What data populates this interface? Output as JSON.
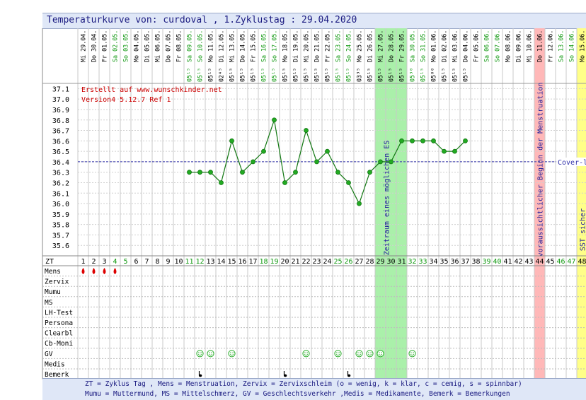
{
  "header": {
    "title": "Temperaturkurve von: curdoval , 1.Zyklustag : 29.04.2020"
  },
  "notes": {
    "created": "Erstellt auf www.wunschkinder.net",
    "version": "Version4 5.12.7 Ref 1",
    "coverline": "Cover-l",
    "fertile_window": "Zeitraum eines möglichen ES",
    "menstruation": "voraussichtlicher Beginn der Menstruation",
    "sst": "SST sicher"
  },
  "legend": {
    "line1": "ZT = Zyklus Tag , Mens = Menstruation, Zervix = Zervixschleim (o = wenig, k = klar, c = cemig, s = spinnbar)",
    "line2": "Mumu = Muttermund, MS = Mittelschmerz, GV = Geschlechtsverkehr ,Medis = Medikamente, Bemerk = Bemerkungen"
  },
  "colors": {
    "line": "#117711",
    "point": "#22aa22",
    "coverline": "#3333aa",
    "fertile": "#aaf0aa",
    "menstruation": "#ffb8b8",
    "sst": "#ffff88",
    "weekend": "#119911",
    "text": "#000000",
    "red_text": "#cc0000"
  },
  "chart_data": {
    "type": "line",
    "title": "Temperaturkurve",
    "ylim": [
      35.5,
      37.15
    ],
    "yticks": [
      37.1,
      37.0,
      36.9,
      36.8,
      36.7,
      36.6,
      36.5,
      36.4,
      36.3,
      36.2,
      36.1,
      36.0,
      35.9,
      35.8,
      35.7,
      35.6
    ],
    "coverline": 36.4,
    "dates": [
      "Mi 29.04.",
      "Do 30.04.",
      "Fr 01.05.",
      "Sa 02.05.",
      "So 03.05.",
      "Mo 04.05.",
      "Di 05.05.",
      "Mi 06.05.",
      "Do 07.05.",
      "Fr 08.05.",
      "Sa 09.05.",
      "So 10.05.",
      "Mo 11.05.",
      "Di 12.05.",
      "Mi 13.05.",
      "Do 14.05.",
      "Fr 15.05.",
      "Sa 16.05.",
      "So 17.05.",
      "Mo 18.05.",
      "Di 19.05.",
      "Mi 20.05.",
      "Do 21.05.",
      "Fr 22.05.",
      "Sa 23.05.",
      "So 24.05.",
      "Mo 25.05.",
      "Di 26.05.",
      "Mi 27.05.",
      "Do 28.05.",
      "Fr 29.05.",
      "Sa 30.05.",
      "So 31.05.",
      "Mo 01.06.",
      "Di 02.06.",
      "Mi 03.06.",
      "Do 04.06.",
      "Fr 05.06.",
      "Sa 06.06.",
      "So 07.06.",
      "Mo 08.06.",
      "Di 09.06.",
      "Mi 10.06.",
      "Do 11.06.",
      "Fr 12.06.",
      "Sa 13.06.",
      "So 14.06.",
      "Mo 15.06."
    ],
    "times": [
      "",
      "",
      "",
      "",
      "",
      "",
      "",
      "",
      "",
      "",
      "05¹⁵",
      "05¹⁵",
      "05¹⁵",
      "02⁴⁵",
      "05¹⁵",
      "05¹⁵",
      "05¹⁵",
      "05¹⁵",
      "05¹⁵",
      "05¹⁵",
      "05¹⁵",
      "05¹⁵",
      "05¹⁵",
      "05¹⁵",
      "05¹⁵",
      "05¹⁵",
      "03³⁵",
      "05¹⁵",
      "05¹⁵",
      "05¹⁵",
      "05¹⁵",
      "05³⁰",
      "05¹⁵",
      "05⁰⁰",
      "05¹⁵",
      "05¹⁵",
      "05¹⁵",
      "",
      "",
      "",
      "",
      "",
      "",
      "",
      "",
      "",
      "",
      ""
    ],
    "days": [
      1,
      2,
      3,
      4,
      5,
      6,
      7,
      8,
      9,
      10,
      11,
      12,
      13,
      14,
      15,
      16,
      17,
      18,
      19,
      20,
      21,
      22,
      23,
      24,
      25,
      26,
      27,
      28,
      29,
      30,
      31,
      32,
      33,
      34,
      35,
      36,
      37,
      38,
      39,
      40,
      41,
      42,
      43,
      44,
      45,
      46,
      47,
      48
    ],
    "temperatures": [
      null,
      null,
      null,
      null,
      null,
      null,
      null,
      null,
      null,
      null,
      36.3,
      36.3,
      36.3,
      36.2,
      36.6,
      36.3,
      36.4,
      36.5,
      36.8,
      36.2,
      36.3,
      36.7,
      36.4,
      36.5,
      36.3,
      36.2,
      36.0,
      36.3,
      36.4,
      36.4,
      36.6,
      36.6,
      36.6,
      36.6,
      36.5,
      36.5,
      36.6,
      null,
      null,
      null,
      null,
      null,
      null,
      null,
      null,
      null,
      null,
      null
    ],
    "fertile_days": [
      29,
      30,
      31
    ],
    "menstruation_day": 44,
    "sst_day": 48,
    "rows": [
      "Mens",
      "Zervix",
      "Mumu",
      "MS",
      "LH-Test",
      "Persona",
      "Clearbl",
      "Cb-Moni",
      "GV",
      "Medis",
      "Bemerk"
    ],
    "zt_label": "ZT",
    "mens_days": [
      1,
      2,
      3,
      4
    ],
    "gv_days": [
      12,
      13,
      15,
      22,
      25,
      27,
      28,
      29,
      32
    ],
    "bemerk_days": [
      12,
      20,
      26
    ]
  }
}
